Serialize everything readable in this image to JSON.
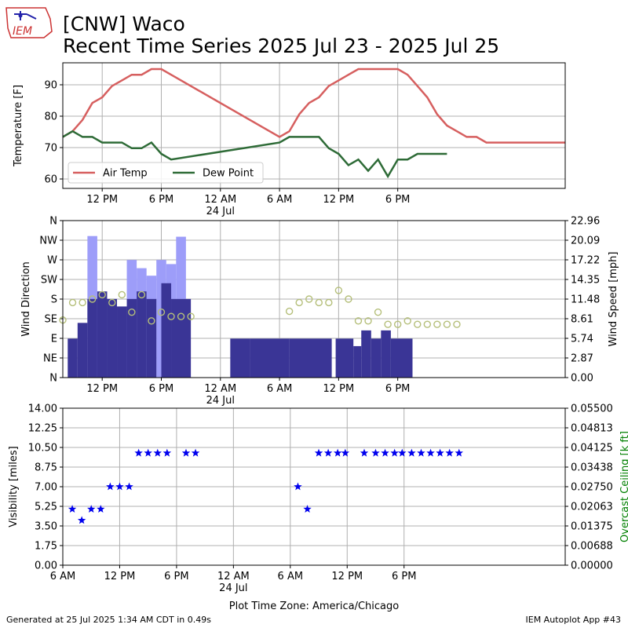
{
  "header": {
    "title_line1": "[CNW] Waco",
    "title_line2": "Recent Time Series 2025 Jul 23 - 2025 Jul 25",
    "logo_text": "IEM"
  },
  "footer": {
    "left": "Generated at 25 Jul 2025 1:34 AM CDT in 0.49s",
    "right": "IEM Autoplot App #43"
  },
  "chart_data": [
    {
      "type": "line",
      "ylabel": "Temperature [F]",
      "xlim": [
        8,
        59
      ],
      "ylim": [
        57,
        97
      ],
      "yticks": [
        60,
        70,
        80,
        90
      ],
      "xticks": [
        {
          "x": 12,
          "label": "12 PM"
        },
        {
          "x": 18,
          "label": "6 PM"
        },
        {
          "x": 24,
          "label": "12 AM",
          "sub": "24 Jul"
        },
        {
          "x": 30,
          "label": "6 AM"
        },
        {
          "x": 36,
          "label": "12 PM"
        },
        {
          "x": 42,
          "label": "6 PM"
        }
      ],
      "grid": true,
      "legend_position": "lower-left",
      "series": [
        {
          "name": "Air Temp",
          "color": "#d65f5f",
          "x": [
            8,
            9,
            10,
            11,
            12,
            13,
            14,
            15,
            16,
            17,
            18,
            19,
            30,
            31,
            32,
            33,
            34,
            35,
            36,
            37,
            38,
            39,
            40,
            41,
            42,
            43,
            44,
            45,
            46,
            47,
            48,
            49,
            50,
            51,
            52,
            53,
            54,
            55,
            56,
            57,
            58,
            59
          ],
          "y": [
            73.4,
            75.2,
            78.8,
            84.2,
            86,
            89.6,
            91.4,
            93.2,
            93.2,
            95,
            95,
            93.2,
            73.4,
            75.2,
            80.6,
            84.2,
            86,
            89.6,
            91.4,
            93.2,
            95,
            95,
            95,
            95,
            95,
            93.2,
            89.6,
            86,
            80.6,
            77,
            75.2,
            73.4,
            73.4,
            71.6,
            71.6,
            71.6,
            71.6,
            71.6,
            71.6,
            71.6,
            71.6,
            71.6
          ]
        },
        {
          "name": "Dew Point",
          "color": "#2e6b37",
          "x": [
            8,
            9,
            10,
            11,
            12,
            13,
            14,
            15,
            16,
            17,
            18,
            19,
            30,
            31,
            32,
            33,
            34,
            35,
            36,
            37,
            38,
            39,
            40,
            41,
            42,
            43,
            44,
            45,
            46,
            47
          ],
          "y": [
            73.4,
            75.2,
            73.4,
            73.4,
            71.6,
            71.6,
            71.6,
            69.8,
            69.8,
            71.6,
            68,
            66.2,
            71.6,
            73.4,
            73.4,
            73.4,
            73.4,
            69.8,
            68,
            64.4,
            66.2,
            62.6,
            66.2,
            60.8,
            66.2,
            66.2,
            68,
            68,
            68,
            68
          ]
        }
      ]
    },
    {
      "type": "bar",
      "ylabel": "Wind Direction",
      "y2label": "Wind Speed [mph]",
      "xlim": [
        8,
        59
      ],
      "ylim": [
        0,
        360
      ],
      "yticklabels": [
        "N",
        "NE",
        "E",
        "SE",
        "S",
        "SW",
        "W",
        "NW",
        "N"
      ],
      "y2lim": [
        0,
        22.96
      ],
      "y2ticks": [
        "0.00",
        "2.87",
        "5.74",
        "8.61",
        "11.48",
        "14.35",
        "17.22",
        "20.09",
        "22.96"
      ],
      "grid": true,
      "series": [
        {
          "name": "Wind Speed",
          "color": "#3a3596",
          "bars": [
            [
              8.5,
              9.5,
              5.7
            ],
            [
              9.5,
              10.5,
              8.0
            ],
            [
              10.5,
              11.5,
              11.5
            ],
            [
              11.5,
              12.5,
              12.6
            ],
            [
              12.5,
              13.5,
              11.5
            ],
            [
              13.5,
              14.5,
              10.4
            ],
            [
              14.5,
              15.5,
              11.5
            ],
            [
              15.5,
              16.5,
              12.6
            ],
            [
              16.5,
              17.5,
              11.5
            ],
            [
              18,
              19,
              13.8
            ],
            [
              19,
              21,
              11.5
            ],
            [
              21,
              25,
              0
            ],
            [
              25,
              27,
              5.7
            ],
            [
              27,
              31,
              5.7
            ],
            [
              31,
              33.5,
              5.7
            ],
            [
              33.5,
              35.3,
              5.7
            ],
            [
              35.7,
              37.5,
              5.7
            ],
            [
              37.5,
              38.3,
              4.6
            ],
            [
              38.3,
              39.3,
              6.9
            ],
            [
              39.3,
              40.3,
              5.7
            ],
            [
              40.3,
              41.3,
              6.9
            ],
            [
              41.3,
              43.5,
              5.7
            ]
          ]
        },
        {
          "name": "Wind Gust",
          "color": "#9d9df9",
          "bars": [
            [
              10.5,
              11.5,
              20.7
            ],
            [
              14.5,
              15.5,
              17.2
            ],
            [
              15.5,
              16.5,
              16.0
            ],
            [
              16.5,
              17.5,
              14.9
            ],
            [
              17.5,
              18.5,
              17.2
            ],
            [
              18.5,
              19.5,
              16.6
            ],
            [
              19.5,
              20.5,
              20.6
            ]
          ]
        },
        {
          "name": "Wind Direction",
          "color": "#b5bf7a",
          "x": [
            8,
            9,
            10,
            11,
            12,
            13,
            14,
            15,
            16,
            17,
            18,
            19,
            20,
            21,
            31,
            32,
            33,
            34,
            35,
            36,
            37,
            38,
            39,
            40,
            41,
            42,
            43,
            44,
            45,
            46,
            47,
            48
          ],
          "y": [
            132,
            172,
            172,
            180,
            190,
            172,
            190,
            150,
            190,
            130,
            150,
            140,
            140,
            140,
            152,
            172,
            180,
            172,
            172,
            200,
            180,
            130,
            130,
            150,
            122,
            122,
            130,
            122,
            122,
            122,
            122,
            122
          ]
        }
      ]
    },
    {
      "type": "scatter",
      "ylabel": "Visibility [miles]",
      "y2label": "Overcast Ceiling [k ft]",
      "xlim": [
        6,
        59
      ],
      "ylim": [
        0,
        14
      ],
      "yticks": [
        "0.00",
        "1.75",
        "3.50",
        "5.25",
        "7.00",
        "8.75",
        "10.50",
        "12.25",
        "14.00"
      ],
      "y2lim": [
        0,
        0.055
      ],
      "y2ticks": [
        "0.00000",
        "0.00688",
        "0.01375",
        "0.02063",
        "0.02750",
        "0.03438",
        "0.04125",
        "0.04813",
        "0.05500"
      ],
      "xticks": [
        {
          "x": 6,
          "label": "6 AM"
        },
        {
          "x": 12,
          "label": "12 PM"
        },
        {
          "x": 18,
          "label": "6 PM"
        },
        {
          "x": 24,
          "label": "12 AM",
          "sub": "24 Jul"
        },
        {
          "x": 30,
          "label": "6 AM"
        },
        {
          "x": 36,
          "label": "12 PM"
        },
        {
          "x": 42,
          "label": "6 PM"
        }
      ],
      "xlabel": "Plot Time Zone: America/Chicago",
      "grid": true,
      "series": [
        {
          "name": "Visibility",
          "color": "#0000ee",
          "x": [
            7,
            8,
            9,
            10,
            11,
            12,
            13,
            14,
            15,
            16,
            17,
            19,
            20,
            30.8,
            31.8,
            33,
            34,
            35,
            35.8,
            37.8,
            39,
            40,
            41,
            41.8,
            42.8,
            43.8,
            44.8,
            45.8,
            46.8,
            47.8
          ],
          "y": [
            5,
            4,
            5,
            5,
            7,
            7,
            7,
            10,
            10,
            10,
            10,
            10,
            10,
            7,
            5,
            10,
            10,
            10,
            10,
            10,
            10,
            10,
            10,
            10,
            10,
            10,
            10,
            10,
            10,
            10
          ]
        }
      ]
    }
  ]
}
